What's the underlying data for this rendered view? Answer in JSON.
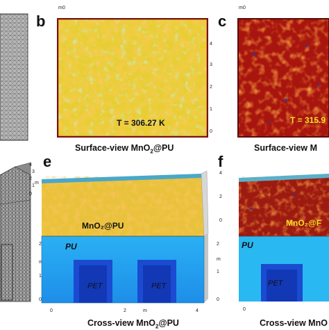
{
  "panels": {
    "b": {
      "letter": "b",
      "caption_prefix": "Surface-view MnO",
      "caption_sub": "2",
      "caption_suffix": "@PU",
      "temperature": "T = 306.27 K",
      "ticks_right": [
        "4",
        "3",
        "2",
        "1",
        "0"
      ],
      "top_unit": "m",
      "top_tick": "0"
    },
    "c": {
      "letter": "c",
      "caption_prefix": "Surface-view M",
      "temperature": "T = 315.9",
      "top_unit": "m",
      "top_tick": "0"
    },
    "e": {
      "letter": "e",
      "caption_prefix": "Cross-view MnO",
      "caption_sub": "2",
      "caption_suffix": "@PU",
      "material_top": "MnO₂@PU",
      "layer": "PU",
      "blocks": [
        "PET",
        "PET"
      ],
      "ticks_right": [
        "2",
        "1",
        "0"
      ],
      "unit_right": "m",
      "ticks_bottom": [
        "0",
        "2",
        "4"
      ],
      "unit_bottom": "m",
      "tick_top_right": [
        "4",
        "2",
        "0"
      ]
    },
    "f": {
      "letter": "f",
      "caption_prefix": "Cross-view MnO",
      "material_top": "MnO₂@F",
      "layer": "PU",
      "blocks": [
        "PET"
      ],
      "tick_bottom": "0"
    },
    "d_left": {
      "ticks": [
        "4",
        "3",
        "2",
        "1",
        "0"
      ],
      "unit": "m",
      "ticks_lower": [
        "2",
        "1",
        "0"
      ],
      "unit_lower": "m"
    }
  },
  "colors": {
    "surface_b": "#e8c830",
    "surface_c": "#b01810",
    "pu_blue": "#2aa6f0",
    "pet_blue": "#1446c8",
    "frame": "#7a1010"
  }
}
